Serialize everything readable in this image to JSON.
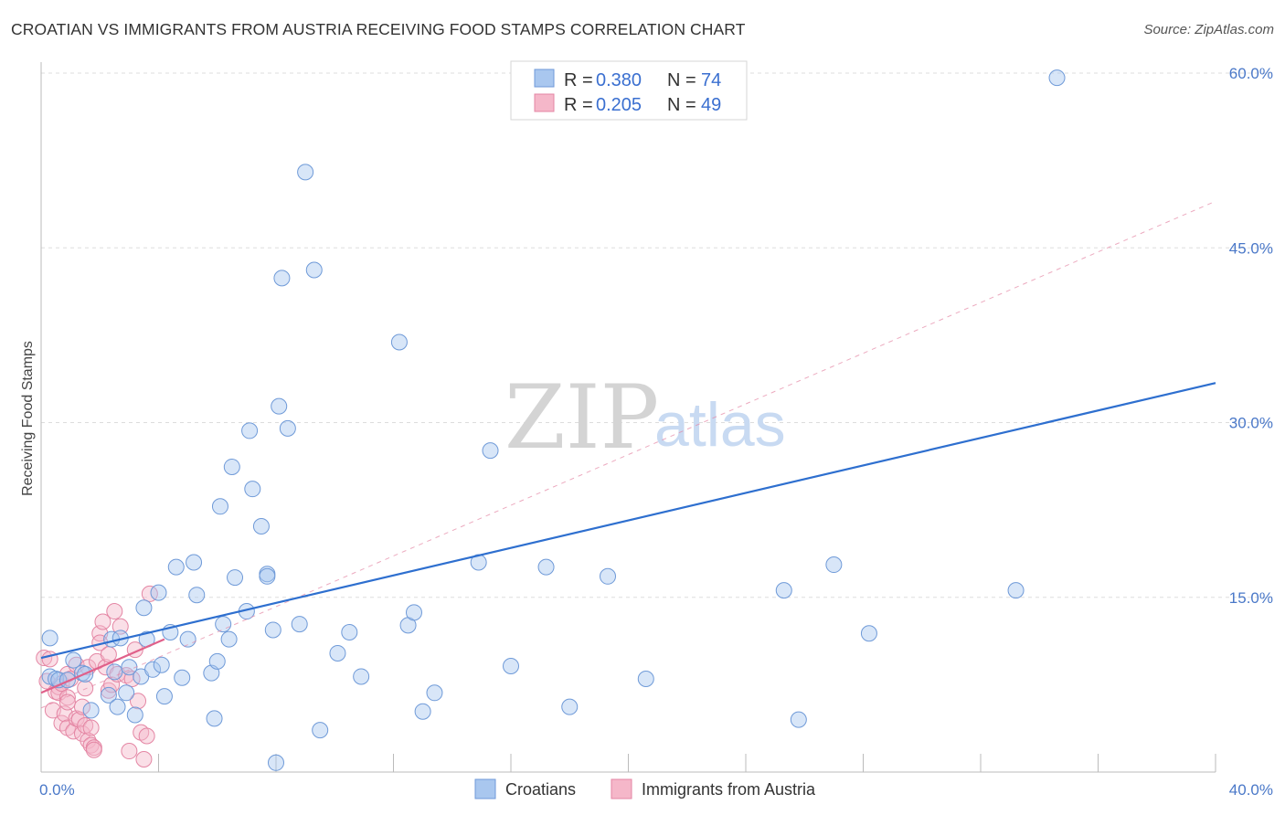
{
  "title": "CROATIAN VS IMMIGRANTS FROM AUSTRIA RECEIVING FOOD STAMPS CORRELATION CHART",
  "source": "Source: ZipAtlas.com",
  "watermark": {
    "part1": "ZIP",
    "part2": "atlas"
  },
  "colors": {
    "blue_fill": "#a9c7ef",
    "blue_stroke": "#6f9ad8",
    "blue_line": "#2e6fcf",
    "pink_fill": "#f5b7c9",
    "pink_stroke": "#e486a4",
    "pink_line": "#e0608a",
    "grid": "#dddddd",
    "tick_text": "#4a78c8"
  },
  "stats_box": {
    "rows": [
      {
        "r_label": "R =",
        "r_value": "0.380",
        "n_label": "N =",
        "n_value": "74"
      },
      {
        "r_label": "R =",
        "r_value": "0.205",
        "n_label": "N =",
        "n_value": "49"
      }
    ]
  },
  "legend": {
    "items": [
      "Croatians",
      "Immigrants from Austria"
    ]
  },
  "chart_data": {
    "type": "scatter",
    "title": "CROATIAN VS IMMIGRANTS FROM AUSTRIA RECEIVING FOOD STAMPS CORRELATION CHART",
    "xlabel": "",
    "ylabel": "Receiving Food Stamps",
    "xlim": [
      0,
      40
    ],
    "ylim": [
      0,
      60
    ],
    "x_tick_labels": [
      {
        "value": 0,
        "label": "0.0%"
      },
      {
        "value": 40,
        "label": "40.0%"
      }
    ],
    "y_tick_labels": [
      {
        "value": 15,
        "label": "15.0%"
      },
      {
        "value": 30,
        "label": "30.0%"
      },
      {
        "value": 45,
        "label": "45.0%"
      },
      {
        "value": 60,
        "label": "60.0%"
      }
    ],
    "x_minor_ticks": [
      0,
      4,
      8,
      12,
      16,
      20,
      24,
      28,
      32,
      36,
      40
    ],
    "series": [
      {
        "name": "Croatians",
        "color": "blue",
        "r": 0.38,
        "n": 74,
        "trend": {
          "x": [
            0,
            40
          ],
          "y": [
            9.8,
            33.4
          ]
        },
        "points": [
          [
            0.3,
            11.5
          ],
          [
            0.3,
            8.2
          ],
          [
            0.5,
            8.0
          ],
          [
            0.6,
            7.9
          ],
          [
            0.9,
            7.9
          ],
          [
            1.1,
            9.6
          ],
          [
            1.4,
            8.5
          ],
          [
            1.5,
            8.4
          ],
          [
            1.7,
            5.3
          ],
          [
            2.3,
            6.6
          ],
          [
            2.4,
            11.4
          ],
          [
            2.5,
            8.6
          ],
          [
            2.6,
            5.6
          ],
          [
            2.7,
            11.5
          ],
          [
            2.9,
            6.8
          ],
          [
            3.0,
            9.0
          ],
          [
            3.2,
            4.9
          ],
          [
            3.4,
            8.2
          ],
          [
            3.5,
            14.1
          ],
          [
            3.6,
            11.4
          ],
          [
            3.8,
            8.8
          ],
          [
            4.0,
            15.4
          ],
          [
            4.1,
            9.2
          ],
          [
            4.2,
            6.5
          ],
          [
            4.4,
            12.0
          ],
          [
            4.6,
            17.6
          ],
          [
            4.8,
            8.1
          ],
          [
            5.0,
            11.4
          ],
          [
            5.2,
            18.0
          ],
          [
            5.3,
            15.2
          ],
          [
            5.8,
            8.5
          ],
          [
            5.9,
            4.6
          ],
          [
            6.0,
            9.5
          ],
          [
            6.1,
            22.8
          ],
          [
            6.2,
            12.7
          ],
          [
            6.4,
            11.4
          ],
          [
            6.5,
            26.2
          ],
          [
            6.6,
            16.7
          ],
          [
            7.0,
            13.8
          ],
          [
            7.1,
            29.3
          ],
          [
            7.2,
            24.3
          ],
          [
            7.5,
            21.1
          ],
          [
            7.7,
            17.0
          ],
          [
            7.7,
            16.8
          ],
          [
            7.9,
            12.2
          ],
          [
            8.0,
            0.8
          ],
          [
            8.1,
            31.4
          ],
          [
            8.2,
            42.4
          ],
          [
            8.4,
            29.5
          ],
          [
            8.8,
            12.7
          ],
          [
            9.0,
            51.5
          ],
          [
            9.3,
            43.1
          ],
          [
            9.5,
            3.6
          ],
          [
            10.1,
            10.2
          ],
          [
            10.5,
            12.0
          ],
          [
            10.9,
            8.2
          ],
          [
            12.2,
            36.9
          ],
          [
            12.5,
            12.6
          ],
          [
            12.7,
            13.7
          ],
          [
            13.0,
            5.2
          ],
          [
            13.4,
            6.8
          ],
          [
            14.9,
            18.0
          ],
          [
            15.3,
            27.6
          ],
          [
            16.0,
            9.1
          ],
          [
            17.2,
            17.6
          ],
          [
            18.0,
            5.6
          ],
          [
            19.3,
            16.8
          ],
          [
            20.6,
            8.0
          ],
          [
            25.3,
            15.6
          ],
          [
            25.8,
            4.5
          ],
          [
            27.0,
            17.8
          ],
          [
            28.2,
            11.9
          ],
          [
            33.2,
            15.6
          ],
          [
            34.6,
            59.6
          ]
        ]
      },
      {
        "name": "Immigrants from Austria",
        "color": "pink",
        "r": 0.205,
        "n": 49,
        "trend": {
          "x": [
            0,
            4.2
          ],
          "y": [
            6.8,
            11.4
          ]
        },
        "trend_extended": {
          "x": [
            0,
            40
          ],
          "y": [
            5.5,
            49.0
          ]
        },
        "points": [
          [
            0.1,
            9.8
          ],
          [
            0.2,
            7.8
          ],
          [
            0.3,
            9.7
          ],
          [
            0.4,
            5.3
          ],
          [
            0.5,
            6.9
          ],
          [
            0.6,
            7.3
          ],
          [
            0.6,
            6.8
          ],
          [
            0.7,
            7.6
          ],
          [
            0.7,
            4.2
          ],
          [
            0.8,
            5.0
          ],
          [
            0.9,
            6.4
          ],
          [
            0.9,
            6.0
          ],
          [
            0.9,
            3.8
          ],
          [
            0.9,
            8.4
          ],
          [
            1.0,
            8.0
          ],
          [
            1.1,
            3.5
          ],
          [
            1.2,
            9.2
          ],
          [
            1.2,
            4.6
          ],
          [
            1.3,
            4.5
          ],
          [
            1.4,
            3.3
          ],
          [
            1.4,
            5.6
          ],
          [
            1.5,
            7.2
          ],
          [
            1.5,
            4.0
          ],
          [
            1.6,
            9.0
          ],
          [
            1.6,
            2.7
          ],
          [
            1.7,
            3.8
          ],
          [
            1.7,
            2.3
          ],
          [
            1.8,
            2.1
          ],
          [
            1.8,
            1.9
          ],
          [
            1.9,
            9.5
          ],
          [
            2.0,
            11.9
          ],
          [
            2.0,
            11.1
          ],
          [
            2.1,
            12.9
          ],
          [
            2.2,
            9.0
          ],
          [
            2.3,
            10.1
          ],
          [
            2.3,
            7.0
          ],
          [
            2.4,
            7.5
          ],
          [
            2.5,
            13.8
          ],
          [
            2.6,
            8.4
          ],
          [
            2.7,
            12.5
          ],
          [
            2.9,
            8.3
          ],
          [
            3.0,
            1.8
          ],
          [
            3.1,
            8.0
          ],
          [
            3.2,
            10.5
          ],
          [
            3.3,
            6.1
          ],
          [
            3.4,
            3.4
          ],
          [
            3.5,
            1.1
          ],
          [
            3.6,
            3.1
          ],
          [
            3.7,
            15.3
          ]
        ]
      }
    ]
  }
}
